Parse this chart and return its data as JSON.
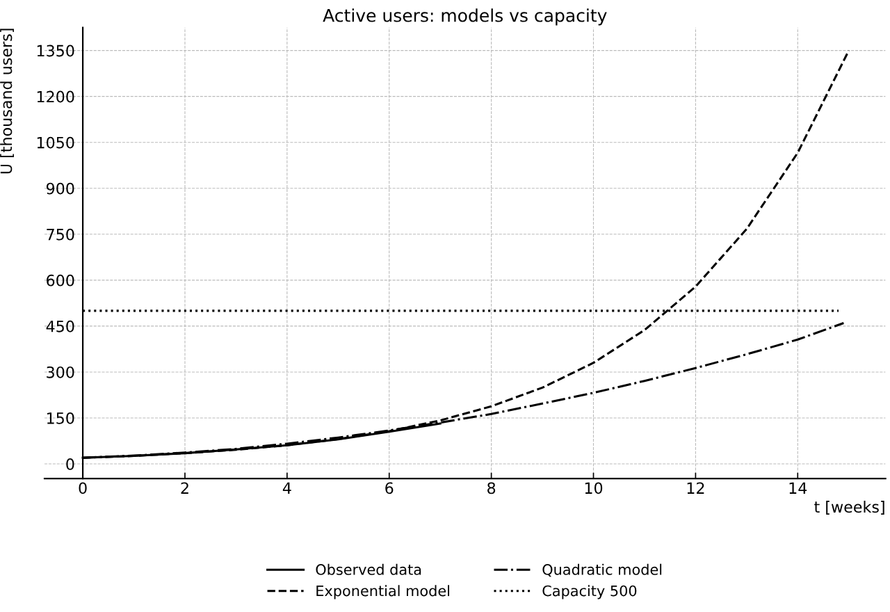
{
  "chart_data": {
    "type": "line",
    "title": "Active users: models vs capacity",
    "xlabel": "t [weeks]",
    "ylabel": "U [thousand users]",
    "xlim": [
      -0.75,
      15.72
    ],
    "ylim": [
      -48,
      1425
    ],
    "xticks": [
      0,
      2,
      4,
      6,
      8,
      10,
      12,
      14
    ],
    "yticks": [
      0,
      150,
      300,
      450,
      600,
      750,
      900,
      1050,
      1200,
      1350
    ],
    "grid": true,
    "legend": "bottom",
    "series": [
      {
        "name": "Observed data",
        "color": "#000000",
        "line_style": "solid",
        "x": [
          0,
          1,
          2,
          3,
          4,
          5,
          6,
          7
        ],
        "values": [
          20,
          26,
          35,
          47,
          61,
          80,
          105,
          132
        ]
      },
      {
        "name": "Exponential model",
        "color": "#000000",
        "line_style": "dashed",
        "x": [
          0,
          1,
          2,
          3,
          4,
          5,
          6,
          7,
          8,
          9,
          10,
          11,
          12,
          13,
          14,
          15
        ],
        "values": [
          20,
          26,
          35,
          46,
          61,
          81,
          107,
          142,
          188,
          249,
          330,
          437,
          579,
          767,
          1016,
          1350
        ]
      },
      {
        "name": "Quadratic model",
        "color": "#000000",
        "line_style": "dashdot",
        "x": [
          0,
          1,
          2,
          3,
          4,
          5,
          6,
          7,
          8,
          9,
          10,
          11,
          12,
          13,
          14,
          14.9
        ],
        "values": [
          20,
          27,
          37,
          49,
          66,
          86,
          109,
          135,
          163,
          197,
          232,
          271,
          313,
          358,
          406,
          460
        ]
      },
      {
        "name": "Capacity 500",
        "color": "#000000",
        "line_style": "dotted",
        "x": [
          0,
          14.8
        ],
        "values": [
          500,
          500
        ]
      }
    ]
  }
}
